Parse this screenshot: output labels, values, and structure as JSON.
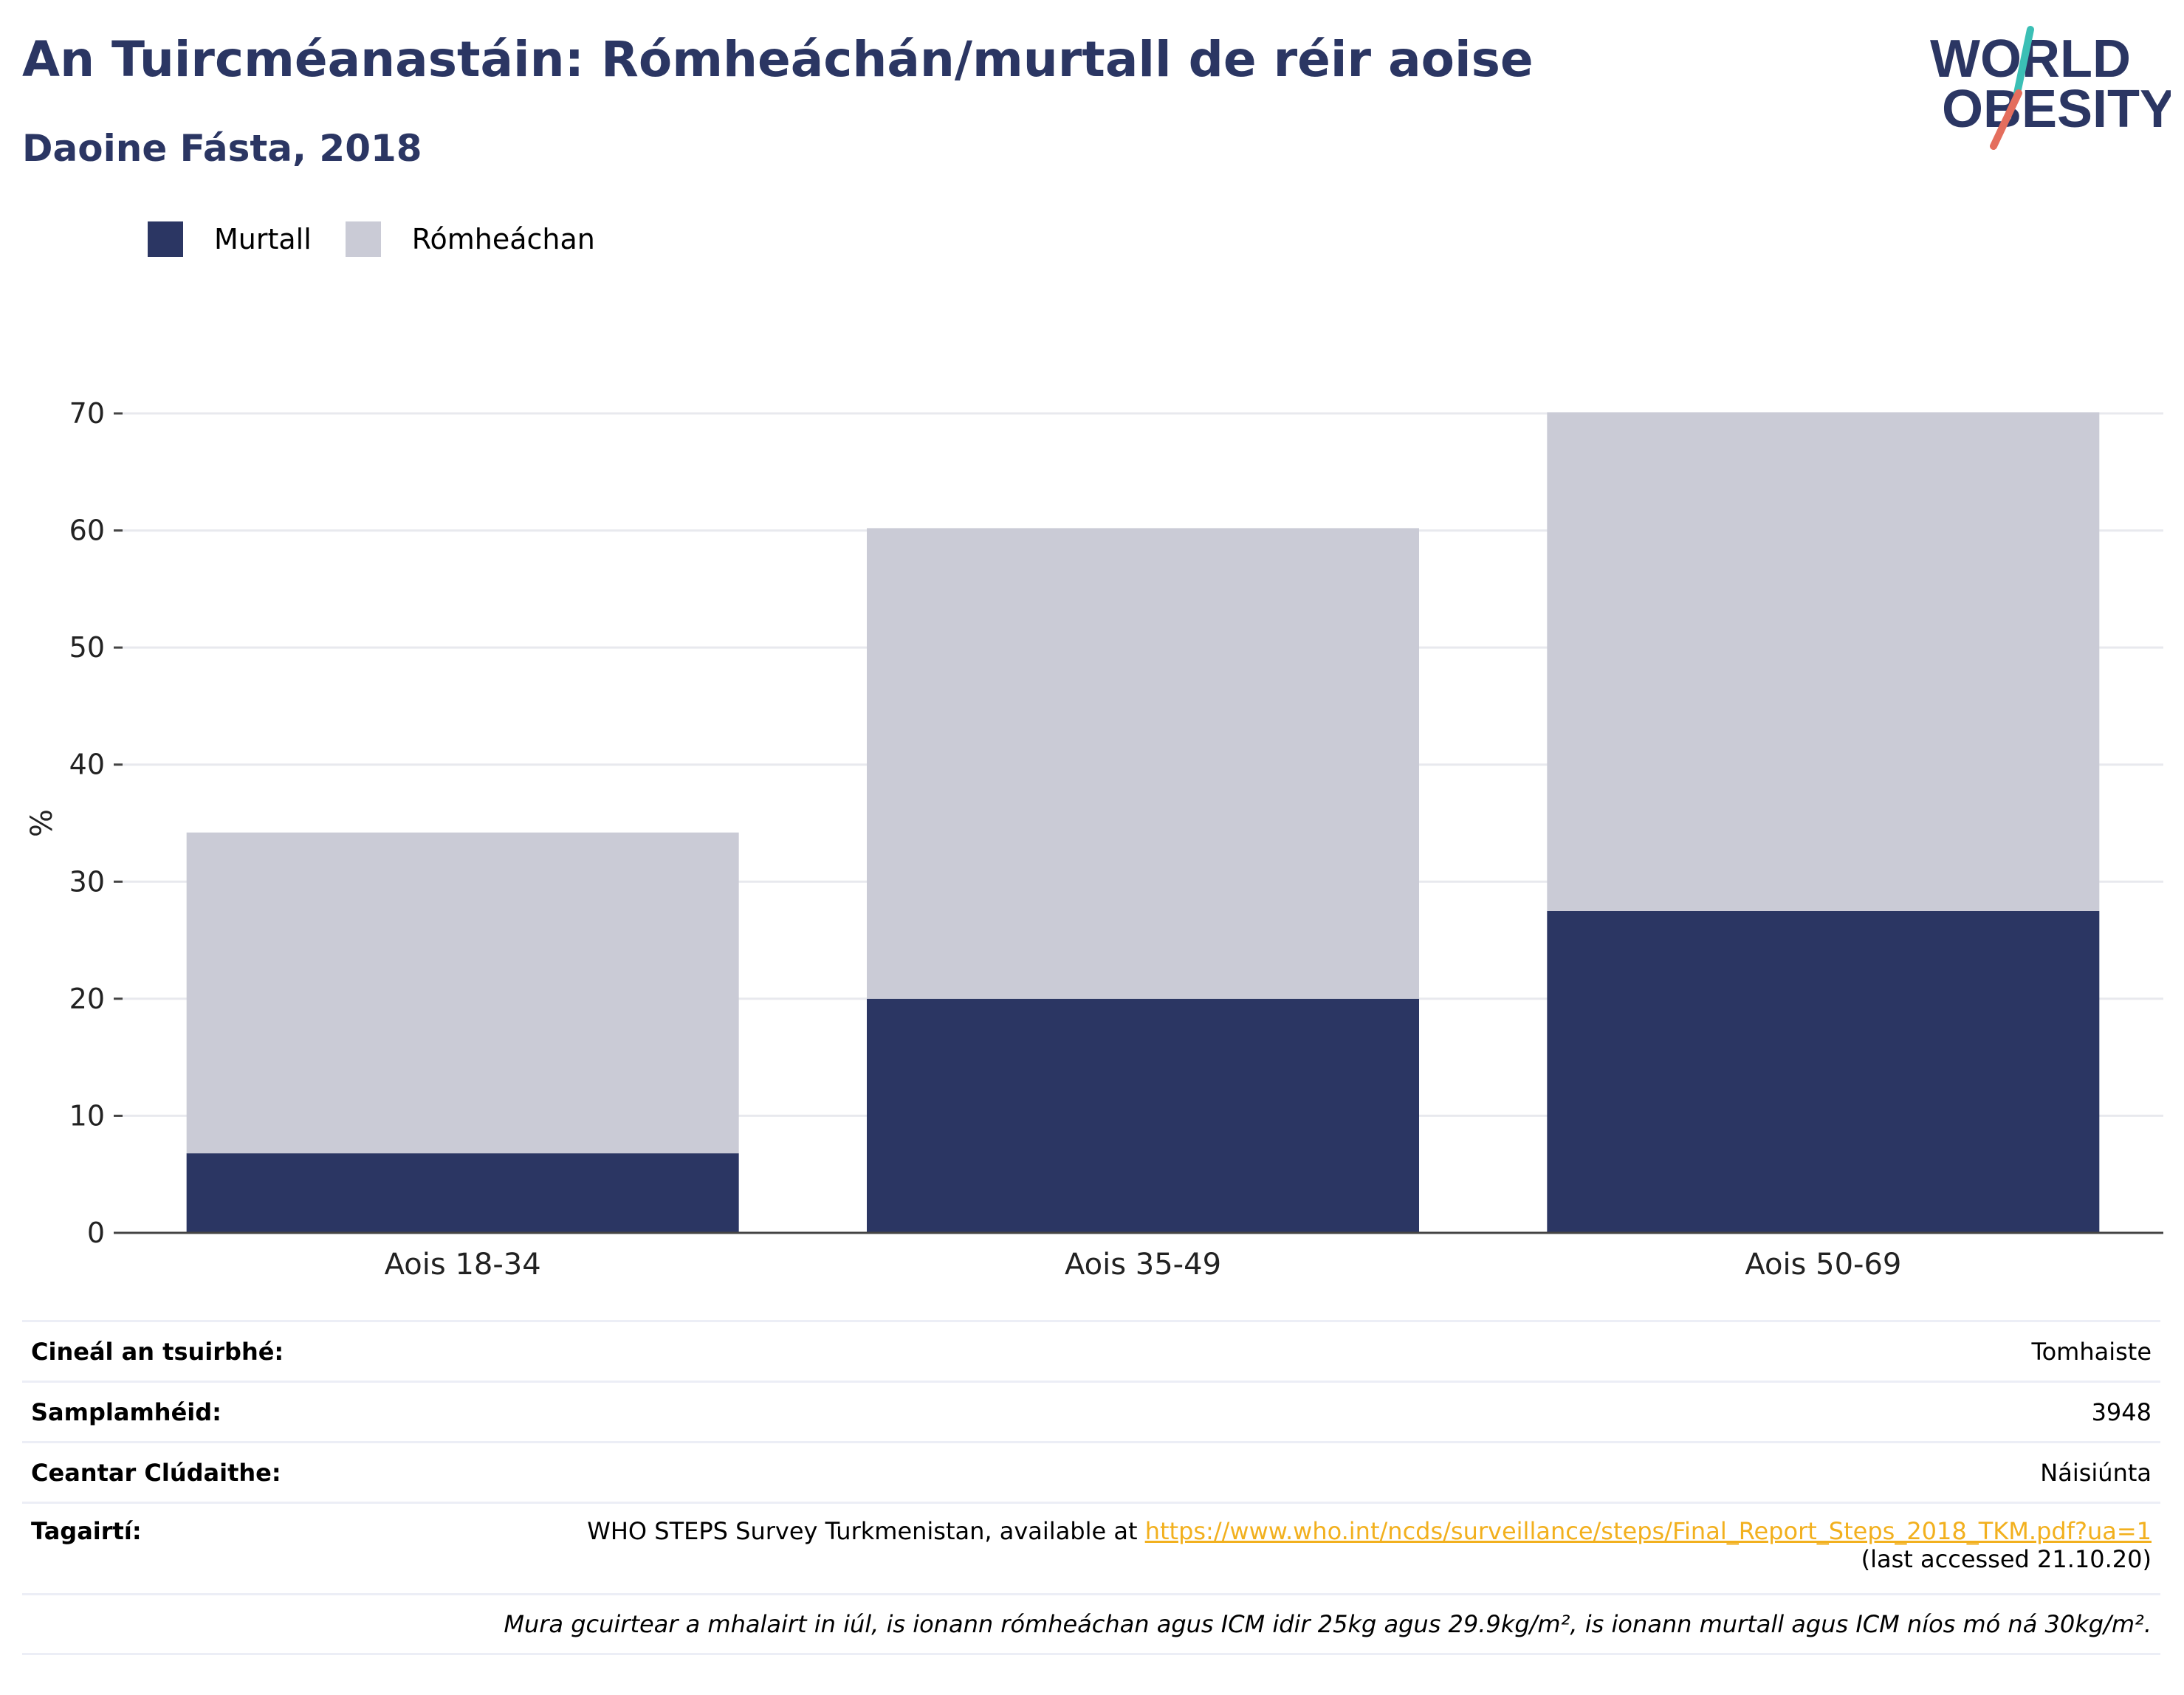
{
  "title": "An Tuircméanastáin: Rómheáchán/murtall de réir aoise",
  "subtitle": "Daoine Fásta, 2018",
  "logo": {
    "line1": "WORLD",
    "line2": "OBESITY"
  },
  "legend": [
    {
      "label": "Murtall",
      "color": "#2b3663"
    },
    {
      "label": "Rómheáchan",
      "color": "#cacbd6"
    }
  ],
  "chart_data": {
    "type": "bar",
    "stacked": true,
    "categories": [
      "Aois 18-34",
      "Aois 35-49",
      "Aois 50-69"
    ],
    "series": [
      {
        "name": "Murtall",
        "color": "#2b3663",
        "values": [
          6.8,
          20.0,
          27.5
        ]
      },
      {
        "name": "Rómheáchan",
        "color": "#cacbd6",
        "values": [
          27.4,
          40.2,
          42.6
        ]
      }
    ],
    "ylabel": "%",
    "ylim": [
      0,
      70
    ],
    "yticks": [
      0,
      10,
      20,
      30,
      40,
      50,
      60,
      70
    ],
    "grid": true,
    "legend_position": "top-left"
  },
  "info": {
    "survey_type_label": "Cineál an tsuirbhé:",
    "survey_type_value": "Tomhaiste",
    "sample_size_label": "Samplamhéid:",
    "sample_size_value": "3948",
    "coverage_label": "Ceantar Clúdaithe:",
    "coverage_value": "Náisiúnta",
    "references_label": "Tagairtí:",
    "reference_text": "WHO STEPS Survey Turkmenistan, available at ",
    "reference_url": "https://www.who.int/ncds/surveillance/steps/Final_Report_Steps_2018_TKM.pdf?ua=1",
    "reference_accessed": "(last accessed 21.10.20)",
    "footnote": "Mura gcuirtear a mhalairt in iúl, is ionann rómheáchan agus ICM idir 25kg agus 29.9kg/m², is ionann murtall agus ICM níos mó ná 30kg/m²."
  }
}
